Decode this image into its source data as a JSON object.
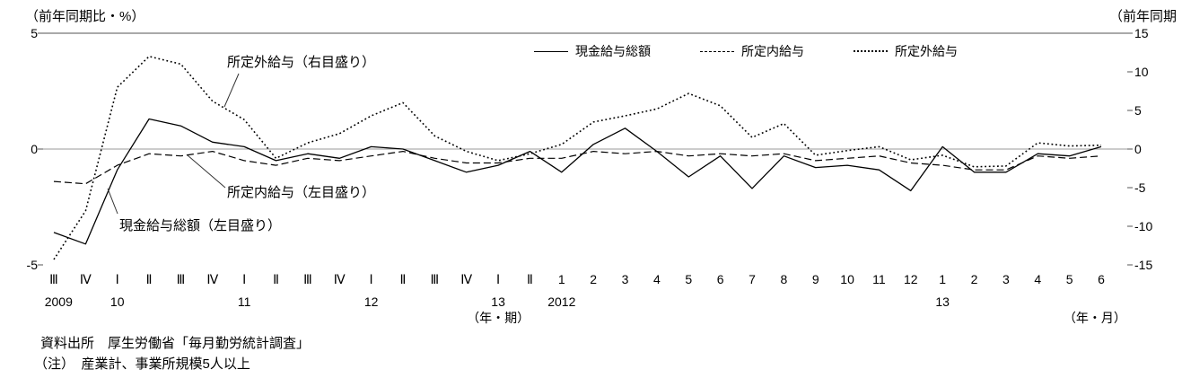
{
  "page": {
    "source_line": "資料出所　厚生労働省「毎月勤労統計調査」",
    "note_line": "（注）　産業計、事業所規模5人以上"
  },
  "chart_data": {
    "type": "line",
    "left_axis_title": "（前年同期比・%）",
    "right_axis_title": "（前年同期",
    "line_color": "#000000",
    "left_axis": {
      "min": -5,
      "max": 5,
      "ticks": [
        5,
        0,
        -5
      ]
    },
    "right_axis": {
      "min": -15,
      "max": 15,
      "ticks": [
        15,
        10,
        5,
        0,
        -5,
        -10,
        -15
      ]
    },
    "x_tick_labels": [
      "Ⅲ",
      "Ⅳ",
      "Ⅰ",
      "Ⅱ",
      "Ⅲ",
      "Ⅳ",
      "Ⅰ",
      "Ⅱ",
      "Ⅲ",
      "Ⅳ",
      "Ⅰ",
      "Ⅱ",
      "Ⅲ",
      "Ⅳ",
      "Ⅰ",
      "Ⅱ",
      "1",
      "2",
      "3",
      "4",
      "5",
      "6",
      "7",
      "8",
      "9",
      "10",
      "11",
      "12",
      "1",
      "2",
      "3",
      "4",
      "5",
      "6"
    ],
    "year_labels": [
      {
        "label": "2009",
        "index": 0.15
      },
      {
        "label": "10",
        "index": 2
      },
      {
        "label": "11",
        "index": 6
      },
      {
        "label": "12",
        "index": 10
      },
      {
        "label": "13",
        "index": 14
      },
      {
        "label": "2012",
        "index": 16
      },
      {
        "label": "13",
        "index": 28
      }
    ],
    "x_axis_unit_left": {
      "label": "（年・期）",
      "index": 14
    },
    "x_axis_unit_right": {
      "label": "（年・月）",
      "index": 32.8
    },
    "series": [
      {
        "name": "現金給与総額",
        "slug": "cash-total",
        "style": "solid",
        "axis": "left",
        "values": [
          -3.6,
          -4.1,
          -0.9,
          1.3,
          1.0,
          0.3,
          0.1,
          -0.5,
          -0.2,
          -0.4,
          0.1,
          0.0,
          -0.5,
          -1.0,
          -0.7,
          -0.1,
          -1.0,
          0.2,
          0.9,
          -0.1,
          -1.2,
          -0.3,
          -1.7,
          -0.3,
          -0.8,
          -0.7,
          -0.9,
          -1.8,
          0.1,
          -1.0,
          -1.0,
          -0.2,
          -0.3,
          0.1
        ]
      },
      {
        "name": "所定内給与",
        "slug": "scheduled-pay",
        "style": "dashed",
        "axis": "left",
        "values": [
          -1.4,
          -1.5,
          -0.7,
          -0.2,
          -0.3,
          -0.1,
          -0.5,
          -0.7,
          -0.4,
          -0.5,
          -0.3,
          -0.1,
          -0.4,
          -0.6,
          -0.6,
          -0.4,
          -0.4,
          -0.1,
          -0.2,
          -0.1,
          -0.3,
          -0.2,
          -0.3,
          -0.2,
          -0.5,
          -0.4,
          -0.3,
          -0.6,
          -0.7,
          -0.9,
          -0.9,
          -0.3,
          -0.4,
          -0.3
        ]
      },
      {
        "name": "所定外給与",
        "slug": "overtime-pay",
        "style": "dotted",
        "axis": "right",
        "values": [
          -14.3,
          -8.0,
          8.0,
          12.0,
          11.0,
          6.2,
          3.8,
          -1.2,
          0.8,
          2.0,
          4.3,
          6.0,
          1.7,
          -0.3,
          -1.5,
          -0.6,
          0.6,
          3.5,
          4.3,
          5.2,
          7.2,
          5.6,
          1.5,
          3.3,
          -0.8,
          -0.2,
          0.3,
          -1.4,
          -0.8,
          -2.3,
          -2.2,
          0.8,
          0.4,
          0.5
        ]
      }
    ],
    "annotations": [
      {
        "text": "所定外給与（右目盛り）"
      },
      {
        "text": "所定内給与（左目盛り）"
      },
      {
        "text": "現金給与総額（左目盛り）"
      }
    ]
  }
}
